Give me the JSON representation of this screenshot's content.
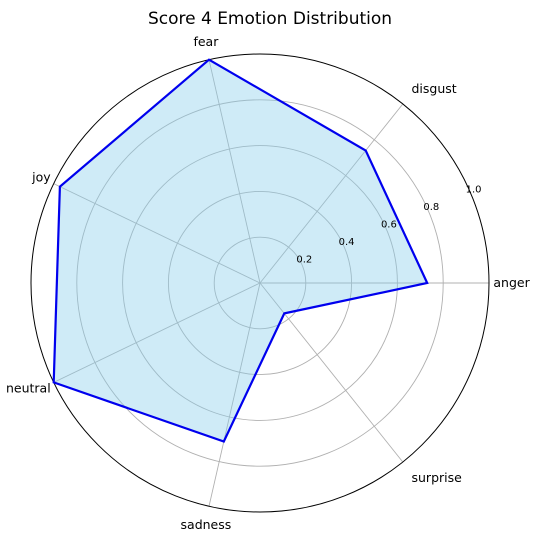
{
  "chart_data": {
    "type": "radar",
    "title": "Score 4 Emotion Distribution",
    "categories": [
      "anger",
      "disgust",
      "fear",
      "joy",
      "neutral",
      "sadness",
      "surprise"
    ],
    "series": [
      {
        "values": [
          0.73,
          0.74,
          1.0,
          0.97,
          1.0,
          0.71,
          0.17
        ]
      }
    ],
    "rlim": [
      0,
      1.0
    ],
    "rticks": [
      0.2,
      0.4,
      0.6,
      0.8,
      1.0
    ],
    "rtick_labels": [
      "0.2",
      "0.4",
      "0.6",
      "0.8",
      "1.0"
    ],
    "grid": true,
    "colors": {
      "line": "#0000ee",
      "fill": "#87ceeb",
      "grid": "#b0b0b0",
      "frame": "#000000"
    }
  }
}
